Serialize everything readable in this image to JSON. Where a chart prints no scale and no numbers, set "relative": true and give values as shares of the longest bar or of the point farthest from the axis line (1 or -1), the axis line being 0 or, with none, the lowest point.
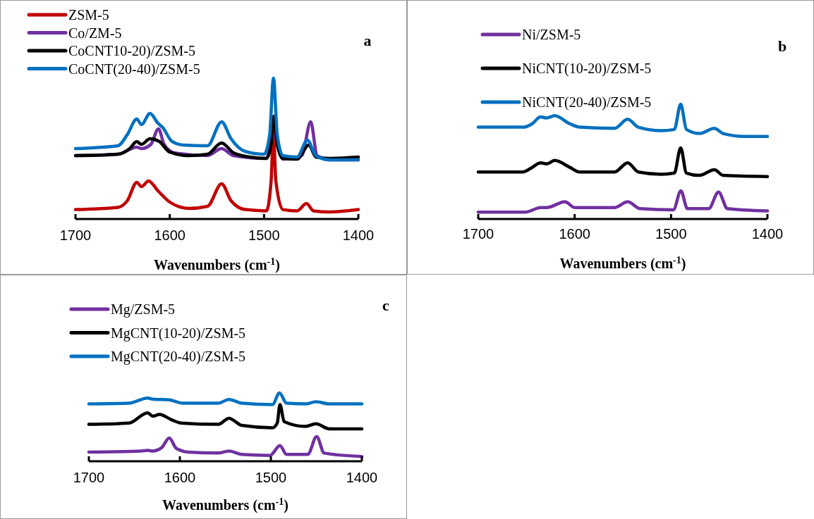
{
  "chart_data": [
    {
      "type": "line",
      "relative": true,
      "xlabel": "Wavenumbers (cm$^{-1}$)",
      "annotations": [
        "a"
      ],
      "xlim": [
        1700,
        1400
      ],
      "xticks": [
        1700,
        1600,
        1500,
        1400
      ],
      "grid": false,
      "legend": "top left",
      "marker": "none",
      "line_style": "solid",
      "series": [
        {
          "name": "ZSM-5",
          "color": "#c00000",
          "x": [
            1700,
            1655,
            1645,
            1635,
            1630,
            1622.5,
            1612.5,
            1600,
            1580,
            1560,
            1545,
            1535,
            1520,
            1497.5,
            1492.5,
            1490,
            1487.5,
            1480,
            1465,
            1455,
            1447.5,
            1430,
            1400
          ],
          "values": [
            0.067,
            0.083,
            0.13,
            0.26,
            0.23,
            0.27,
            0.2,
            0.12,
            0.075,
            0.09,
            0.25,
            0.13,
            0.067,
            0.058,
            0.27,
            0.62,
            0.27,
            0.067,
            0.058,
            0.11,
            0.058,
            0.05,
            0.067
          ]
        },
        {
          "name": "Co/ZM-5",
          "color": "#7030a0",
          "x": [
            1700,
            1655,
            1635,
            1630,
            1620,
            1612,
            1606,
            1595,
            1560,
            1545,
            1532.5,
            1497.5,
            1490,
            1480,
            1460,
            1450.5,
            1443.75,
            1430,
            1400
          ],
          "values": [
            0.45,
            0.46,
            0.51,
            0.5,
            0.53,
            0.64,
            0.53,
            0.47,
            0.45,
            0.5,
            0.45,
            0.43,
            0.6,
            0.425,
            0.45,
            0.69,
            0.45,
            0.42,
            0.42
          ]
        },
        {
          "name": "CoCNT10-20)/ZSM-5",
          "color": "#000000",
          "x": [
            1700,
            1655,
            1642.5,
            1635,
            1630,
            1621,
            1611,
            1600,
            1580,
            1560,
            1545,
            1532.5,
            1515,
            1497.5,
            1492.5,
            1489.5,
            1486,
            1480,
            1465,
            1452.5,
            1445,
            1430,
            1400
          ],
          "values": [
            0.45,
            0.46,
            0.5,
            0.55,
            0.53,
            0.57,
            0.55,
            0.475,
            0.45,
            0.46,
            0.54,
            0.47,
            0.44,
            0.43,
            0.53,
            0.73,
            0.53,
            0.43,
            0.425,
            0.525,
            0.44,
            0.43,
            0.44
          ]
        },
        {
          "name": "CoCNT(20-40)/ZSM-5",
          "color": "#0070c0",
          "x": [
            1700,
            1655,
            1645,
            1635,
            1630,
            1621,
            1612.5,
            1607.5,
            1597.5,
            1585,
            1560,
            1545,
            1535,
            1520,
            1500,
            1494,
            1490,
            1486,
            1480,
            1465,
            1454,
            1445,
            1430,
            1400
          ],
          "values": [
            0.5,
            0.52,
            0.6,
            0.71,
            0.67,
            0.75,
            0.68,
            0.65,
            0.55,
            0.525,
            0.52,
            0.69,
            0.57,
            0.48,
            0.46,
            0.6,
            1.0,
            0.6,
            0.45,
            0.44,
            0.56,
            0.45,
            0.42,
            0.42
          ]
        }
      ]
    },
    {
      "type": "line",
      "relative": true,
      "xlabel": "Wavenumbers (cm$^{-1}$)",
      "annotations": [
        "b"
      ],
      "xlim": [
        1700,
        1400
      ],
      "xticks": [
        1700,
        1600,
        1500,
        1400
      ],
      "grid": false,
      "legend": "top left",
      "marker": "none",
      "line_style": "solid",
      "series": [
        {
          "name": "Ni/ZSM-5",
          "color": "#7030a0",
          "x": [
            1700,
            1651,
            1635.4,
            1629,
            1610,
            1600,
            1558.5,
            1545,
            1532,
            1497.6,
            1489.8,
            1483,
            1461,
            1450.7,
            1441.5,
            1400
          ],
          "values": [
            0.06,
            0.06,
            0.1,
            0.1,
            0.15,
            0.1,
            0.1,
            0.15,
            0.09,
            0.08,
            0.245,
            0.09,
            0.09,
            0.235,
            0.09,
            0.07
          ]
        },
        {
          "name": "NiCNT(10-20)/ZSM-5",
          "color": "#000000",
          "x": [
            1700,
            1653.7,
            1644,
            1635.4,
            1629,
            1620.7,
            1605,
            1595,
            1558.5,
            1545,
            1534,
            1510,
            1496.6,
            1490,
            1484,
            1470.7,
            1455,
            1446,
            1400
          ],
          "values": [
            0.41,
            0.41,
            0.45,
            0.49,
            0.48,
            0.51,
            0.45,
            0.41,
            0.41,
            0.49,
            0.41,
            0.39,
            0.4,
            0.62,
            0.4,
            0.38,
            0.43,
            0.38,
            0.37
          ]
        },
        {
          "name": "NiCNT(20-40)/ZSM-5",
          "color": "#0070c0",
          "x": [
            1700,
            1653.7,
            1644,
            1635.4,
            1629,
            1620.7,
            1605,
            1595,
            1558.5,
            1545,
            1534,
            1510,
            1496.6,
            1490,
            1484,
            1470.7,
            1455,
            1446,
            1424,
            1400
          ],
          "values": [
            0.8,
            0.8,
            0.83,
            0.89,
            0.88,
            0.9,
            0.83,
            0.8,
            0.79,
            0.87,
            0.8,
            0.77,
            0.78,
            1.0,
            0.78,
            0.745,
            0.79,
            0.745,
            0.72,
            0.72
          ]
        }
      ]
    },
    {
      "type": "line",
      "relative": true,
      "xlabel": "Wavenumbers (cm$^{-1}$)",
      "annotations": [
        "c"
      ],
      "xlim": [
        1700,
        1400
      ],
      "xticks": [
        1700,
        1600,
        1500,
        1400
      ],
      "grid": false,
      "legend": "top left",
      "marker": "none",
      "line_style": "solid",
      "series": [
        {
          "name": "Mg/ZSM-5",
          "color": "#7030a0",
          "x": [
            1700,
            1643,
            1635.4,
            1630,
            1620,
            1611.6,
            1604,
            1591,
            1557.8,
            1546,
            1532,
            1501,
            1490,
            1482.8,
            1459.5,
            1449.7,
            1441.4,
            1400
          ],
          "values": [
            0.135,
            0.15,
            0.16,
            0.15,
            0.2,
            0.34,
            0.19,
            0.135,
            0.12,
            0.15,
            0.1,
            0.085,
            0.23,
            0.1,
            0.1,
            0.36,
            0.12,
            0.07
          ]
        },
        {
          "name": "MgCNT(10-20)/ZSM-5",
          "color": "#000000",
          "x": [
            1700,
            1656,
            1635.4,
            1630,
            1622.4,
            1609.5,
            1599,
            1557.8,
            1546,
            1532,
            1498.3,
            1493,
            1490,
            1485.4,
            1462,
            1450.5,
            1436,
            1400
          ],
          "values": [
            0.54,
            0.56,
            0.71,
            0.66,
            0.685,
            0.61,
            0.56,
            0.54,
            0.63,
            0.525,
            0.49,
            0.56,
            0.83,
            0.58,
            0.51,
            0.55,
            0.475,
            0.475
          ]
        },
        {
          "name": "MgCNT(20-40)/ZSM-5",
          "color": "#0070c0",
          "x": [
            1700,
            1656,
            1635.4,
            1630,
            1612,
            1596.6,
            1557.8,
            1546,
            1532,
            1498.3,
            1490.5,
            1482.8,
            1462,
            1450.5,
            1436,
            1400
          ],
          "values": [
            0.84,
            0.85,
            0.925,
            0.91,
            0.9,
            0.85,
            0.85,
            0.905,
            0.85,
            0.83,
            1.0,
            0.85,
            0.84,
            0.87,
            0.84,
            0.84
          ]
        }
      ]
    }
  ]
}
